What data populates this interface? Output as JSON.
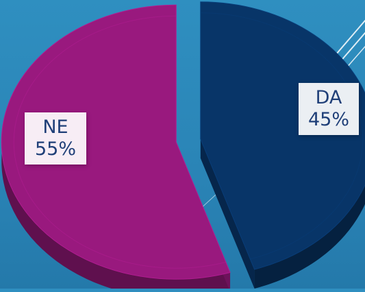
{
  "chart_data": {
    "type": "pie",
    "style": "3d-exploded",
    "categories": [
      "DA",
      "NE"
    ],
    "values": [
      45,
      55
    ],
    "value_labels": [
      "45%",
      "55%"
    ],
    "colors": [
      "#083568",
      "#99197e"
    ],
    "title": "",
    "legend": "none"
  },
  "theme": {
    "background": "#2e8cbe",
    "label_text_color": "#1f3f78",
    "label_background": "#ffffff"
  }
}
